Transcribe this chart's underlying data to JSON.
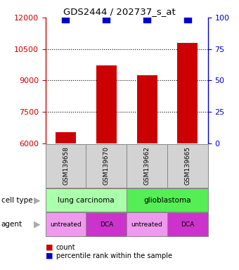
{
  "title": "GDS2444 / 202737_s_at",
  "samples": [
    "GSM139658",
    "GSM139670",
    "GSM139662",
    "GSM139665"
  ],
  "counts": [
    6530,
    9700,
    9250,
    10780
  ],
  "percentile_ranks": [
    99,
    99,
    99,
    99
  ],
  "ylim_left": [
    6000,
    12000
  ],
  "yticks_left": [
    6000,
    7500,
    9000,
    10500,
    12000
  ],
  "ylim_right": [
    0,
    100
  ],
  "yticks_right": [
    0,
    25,
    50,
    75,
    100
  ],
  "bar_color": "#cc0000",
  "dot_color": "#0000cc",
  "cell_type_colors": [
    "#aaffaa",
    "#55ee55"
  ],
  "agent_colors": [
    "#ee99ee",
    "#cc33cc",
    "#ee99ee",
    "#cc33cc"
  ],
  "cell_types": [
    {
      "label": "lung carcinoma",
      "span": [
        0,
        2
      ]
    },
    {
      "label": "glioblastoma",
      "span": [
        2,
        4
      ]
    }
  ],
  "agents": [
    {
      "label": "untreated",
      "idx": 0
    },
    {
      "label": "DCA",
      "idx": 1
    },
    {
      "label": "untreated",
      "idx": 2
    },
    {
      "label": "DCA",
      "idx": 3
    }
  ],
  "legend_count_color": "#cc0000",
  "legend_pct_color": "#0000cc",
  "ax_left_color": "#cc0000",
  "ax_right_color": "#0000cc",
  "dotted_yticks": [
    7500,
    9000,
    10500
  ],
  "bar_width": 0.5,
  "dot_size": 50,
  "sample_box_facecolor": "#d3d3d3",
  "spine_color": "#888888"
}
